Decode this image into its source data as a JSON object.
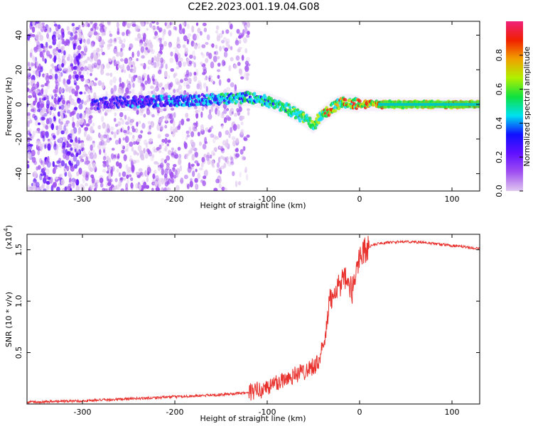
{
  "title": "C2E2.2023.001.19.04.G08",
  "colors": {
    "snr_line": "#e8302c",
    "colorbar_stops": [
      "#e0c8f0",
      "#a050f0",
      "#6010ff",
      "#1010ff",
      "#00e0f0",
      "#10e040",
      "#b0f000",
      "#f0a000",
      "#f02000",
      "#f0207a"
    ]
  },
  "chart_data": [
    {
      "type": "heatmap",
      "xlabel": "Height of straight line (km)",
      "ylabel": "Frequency (Hz)",
      "xlim": [
        -360,
        130
      ],
      "ylim": [
        -50,
        48
      ],
      "xticks": [
        -300,
        -200,
        -100,
        0,
        100
      ],
      "xtick_labels": [
        "-300",
        "-200",
        "-100",
        "0",
        "100"
      ],
      "yticks": [
        -40,
        -20,
        0,
        20,
        40
      ],
      "ytick_labels": [
        "-40",
        "-20",
        "0",
        "20",
        "40"
      ],
      "colorbar": {
        "label": "Normalized spectral amplitude",
        "range": [
          0,
          1
        ],
        "ticks": [
          0.0,
          0.2,
          0.4,
          0.6,
          0.8
        ],
        "tick_labels": [
          "0.0",
          "0.2",
          "0.4",
          "0.6",
          "0.8"
        ]
      },
      "ridge": [
        {
          "x": -280,
          "f": 1
        },
        {
          "x": -200,
          "f": 2
        },
        {
          "x": -150,
          "f": 3
        },
        {
          "x": -120,
          "f": 4
        },
        {
          "x": -100,
          "f": 2
        },
        {
          "x": -80,
          "f": -2
        },
        {
          "x": -60,
          "f": -8
        },
        {
          "x": -50,
          "f": -12
        },
        {
          "x": -40,
          "f": -6
        },
        {
          "x": -30,
          "f": -2
        },
        {
          "x": -20,
          "f": 1
        },
        {
          "x": -10,
          "f": 1
        },
        {
          "x": 0,
          "f": 0
        },
        {
          "x": 130,
          "f": 0
        }
      ],
      "grid": false
    },
    {
      "type": "line",
      "xlabel": "Height of straight line (km)",
      "ylabel": "SNR (10 * v/v)",
      "scale_note": "(x10",
      "scale_exp": "4",
      "scale_close": ")",
      "xlim": [
        -360,
        130
      ],
      "ylim": [
        0,
        16500
      ],
      "xticks": [
        -300,
        -200,
        -100,
        0,
        100
      ],
      "xtick_labels": [
        "-300",
        "-200",
        "-100",
        "0",
        "100"
      ],
      "yticks": [
        5000,
        10000,
        15000
      ],
      "ytick_labels": [
        "0.5",
        "1.0",
        "1.5"
      ],
      "series": [
        {
          "x": [
            -360,
            -300,
            -250,
            -200,
            -150,
            -120,
            -100,
            -80,
            -60,
            -45,
            -38,
            -32,
            -25,
            -15,
            -8,
            0,
            10,
            20,
            30,
            50,
            70,
            90,
            110,
            130
          ],
          "values": [
            200,
            300,
            500,
            700,
            900,
            1100,
            1600,
            2500,
            3200,
            4000,
            6000,
            10000,
            11500,
            12000,
            11000,
            14500,
            15300,
            15600,
            15700,
            15800,
            15700,
            15500,
            15300,
            15100
          ]
        }
      ],
      "grid": false
    }
  ]
}
